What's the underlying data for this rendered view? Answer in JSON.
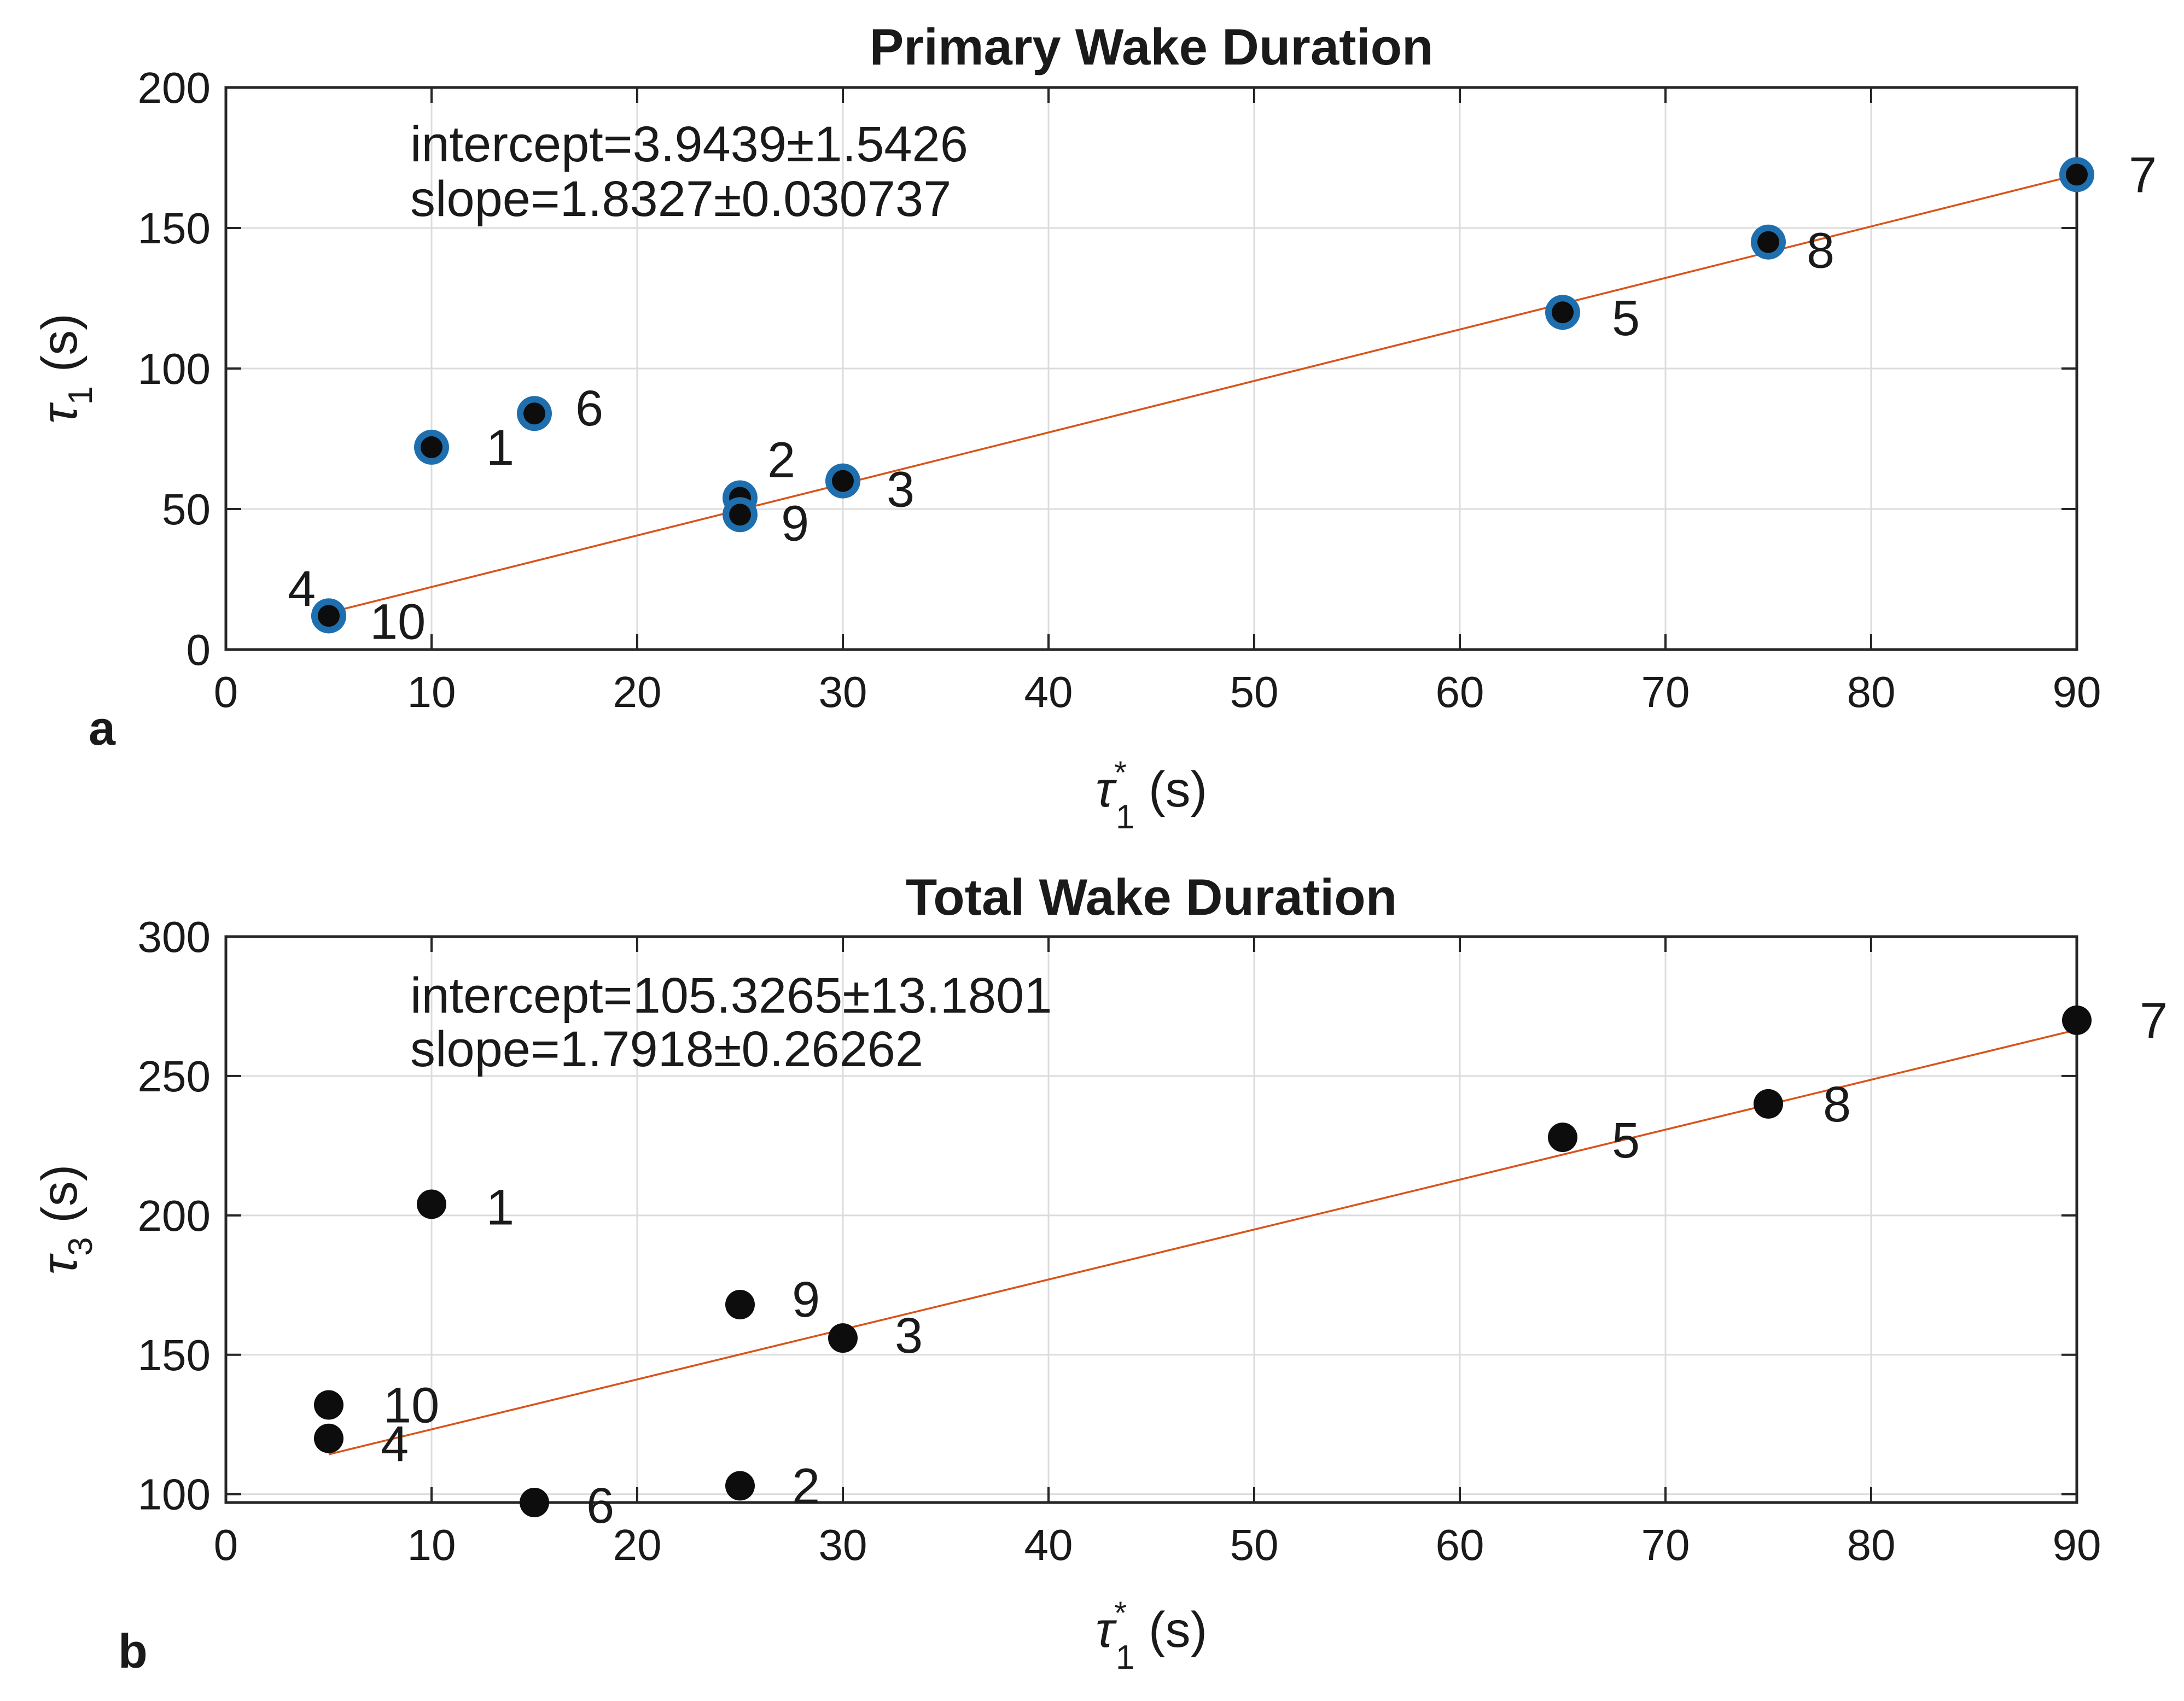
{
  "chart_data": [
    {
      "type": "scatter",
      "title": "Primary Wake Duration",
      "panel_label": "a",
      "xlabel": "τ1* (s)",
      "ylabel": "τ1 (s)",
      "xlim": [
        0,
        90
      ],
      "ylim": [
        0,
        200
      ],
      "xticks": [
        0,
        10,
        20,
        30,
        40,
        50,
        60,
        70,
        80,
        90
      ],
      "yticks": [
        0,
        50,
        100,
        150,
        200
      ],
      "grid": true,
      "marker_style": "black dot with blue ring",
      "annotations": [
        "intercept=3.9439±1.5426",
        "slope=1.8327±0.030737"
      ],
      "fit_line": {
        "intercept": 3.9439,
        "slope": 1.8327,
        "x_range": [
          5,
          90
        ]
      },
      "points": [
        {
          "label": "1",
          "x": 10,
          "y": 72
        },
        {
          "label": "2",
          "x": 25,
          "y": 54
        },
        {
          "label": "3",
          "x": 30,
          "y": 60
        },
        {
          "label": "4",
          "x": 5,
          "y": 12
        },
        {
          "label": "5",
          "x": 65,
          "y": 120
        },
        {
          "label": "6",
          "x": 15,
          "y": 84
        },
        {
          "label": "7",
          "x": 90,
          "y": 169
        },
        {
          "label": "8",
          "x": 75,
          "y": 145
        },
        {
          "label": "9",
          "x": 25,
          "y": 48
        },
        {
          "label": "10",
          "x": 5,
          "y": 12
        }
      ]
    },
    {
      "type": "scatter",
      "title": "Total Wake Duration",
      "panel_label": "b",
      "xlabel": "τ1* (s)",
      "ylabel": "τ3 (s)",
      "xlim": [
        0,
        90
      ],
      "ylim": [
        97,
        300
      ],
      "xticks": [
        0,
        10,
        20,
        30,
        40,
        50,
        60,
        70,
        80,
        90
      ],
      "yticks": [
        100,
        150,
        200,
        250,
        300
      ],
      "grid": true,
      "marker_style": "black dot",
      "annotations": [
        "intercept=105.3265±13.1801",
        "slope=1.7918±0.26262"
      ],
      "fit_line": {
        "intercept": 105.3265,
        "slope": 1.7918,
        "x_range": [
          5,
          90
        ]
      },
      "points": [
        {
          "label": "1",
          "x": 10,
          "y": 204
        },
        {
          "label": "2",
          "x": 25,
          "y": 103
        },
        {
          "label": "3",
          "x": 30,
          "y": 156
        },
        {
          "label": "4",
          "x": 5,
          "y": 120
        },
        {
          "label": "5",
          "x": 65,
          "y": 228
        },
        {
          "label": "6",
          "x": 15,
          "y": 97
        },
        {
          "label": "7",
          "x": 90,
          "y": 270
        },
        {
          "label": "8",
          "x": 75,
          "y": 240
        },
        {
          "label": "9",
          "x": 25,
          "y": 168
        },
        {
          "label": "10",
          "x": 5,
          "y": 132
        }
      ]
    }
  ]
}
